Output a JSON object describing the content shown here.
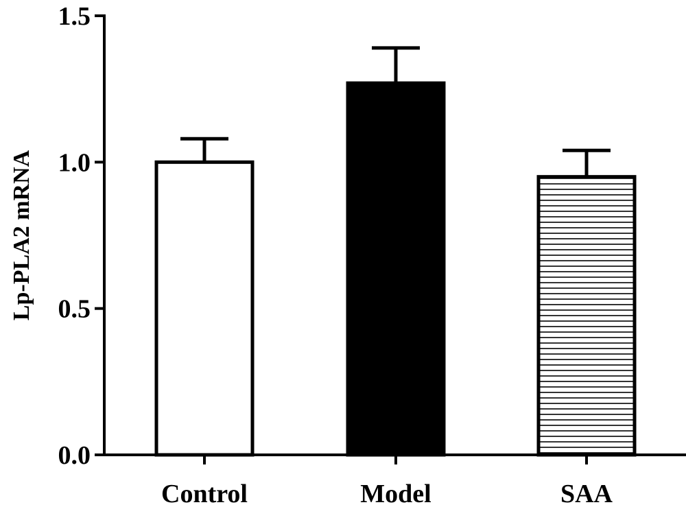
{
  "chart_data": {
    "type": "bar",
    "categories": [
      "Control",
      "Model",
      "SAA"
    ],
    "values": [
      1.0,
      1.27,
      0.95
    ],
    "errors": [
      0.08,
      0.12,
      0.09
    ],
    "fills": [
      "white",
      "black",
      "horizontal-lines"
    ],
    "ylabel": "Lp-PLA2 mRNA",
    "xlabel": "",
    "ylim": [
      0,
      1.5
    ],
    "yticks": [
      0.0,
      0.5,
      1.0,
      1.5
    ],
    "ytick_labels": [
      "0.0",
      "0.5",
      "1.0",
      "1.5"
    ],
    "grid": false,
    "legend": "none"
  }
}
